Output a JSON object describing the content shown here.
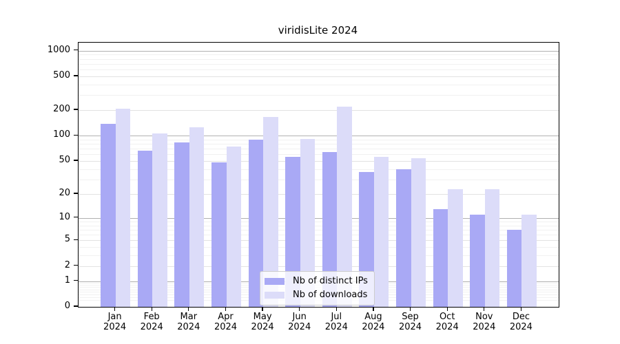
{
  "chart_data": {
    "type": "bar",
    "title": "viridisLite 2024",
    "categories": [
      "Jan",
      "Feb",
      "Mar",
      "Apr",
      "May",
      "Jun",
      "Jul",
      "Aug",
      "Sep",
      "Oct",
      "Nov",
      "Dec"
    ],
    "x_year_suffix": "2024",
    "series": [
      {
        "name": "Nb of distinct IPs",
        "color": "#a9a9f5",
        "values": [
          137,
          66,
          83,
          48,
          89,
          56,
          64,
          37,
          40,
          13,
          11,
          7
        ]
      },
      {
        "name": "Nb of downloads",
        "color": "#dcdcf9",
        "values": [
          210,
          107,
          127,
          75,
          167,
          91,
          222,
          56,
          54,
          23,
          23,
          11
        ]
      }
    ],
    "yscale": "log1p",
    "ylim": [
      0,
      1240
    ],
    "yticks": [
      0,
      1,
      2,
      5,
      10,
      20,
      50,
      100,
      200,
      500,
      1000
    ],
    "grid": true,
    "legend_position": "lower center"
  },
  "colors": {
    "background": "#ffffff",
    "spine": "#000000",
    "grid_strong": "#b0b0b0",
    "grid_medium": "#e2e2e2",
    "grid_minor": "#f1f1f1",
    "legend_border": "#cccccc"
  }
}
